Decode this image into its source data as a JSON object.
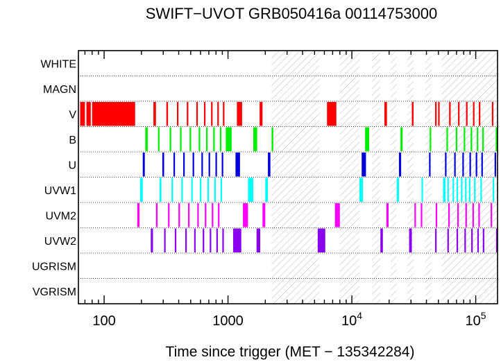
{
  "chart_data": {
    "type": "timeline",
    "title": "SWIFT−UVOT GRB050416a 00114753000",
    "xlabel": "Time since trigger (MET − 135342284)",
    "ylabel": "",
    "xscale": "log",
    "xlim": [
      62,
      150000
    ],
    "x_ticks": [
      {
        "value": 100,
        "label": "100"
      },
      {
        "value": 1000,
        "label": "1000"
      },
      {
        "value": 10000,
        "label": "10",
        "exp": "4"
      },
      {
        "value": 100000,
        "label": "10",
        "exp": "5"
      }
    ],
    "rows": [
      "WHITE",
      "MAGN",
      "V",
      "B",
      "U",
      "UVW1",
      "UVM2",
      "UVW2",
      "UGRISM",
      "VGRISM"
    ],
    "colors": {
      "V": "#ff0000",
      "B": "#00ee00",
      "U": "#0000dd",
      "UVW1": "#00ffff",
      "UVM2": "#ff00ff",
      "UVW2": "#8800ee",
      "gap_hatch": "#bbbbbb",
      "row_divider": "#000000"
    },
    "grid": "dotted row dividers",
    "hatched_gaps": [
      [
        2250,
        5500
      ],
      [
        8000,
        11500
      ],
      [
        14500,
        17000
      ],
      [
        20500,
        23000
      ],
      [
        28000,
        31500
      ],
      [
        39000,
        44000
      ],
      [
        53000,
        150000
      ]
    ],
    "exposures": {
      "V": [
        [
          64,
          70
        ],
        [
          72,
          78
        ],
        [
          80,
          178
        ],
        [
          250,
          262
        ],
        [
          318,
          328
        ],
        [
          387,
          397
        ],
        [
          465,
          475
        ],
        [
          555,
          565
        ],
        [
          640,
          650
        ],
        [
          730,
          738
        ],
        [
          820,
          828
        ],
        [
          910,
          918
        ],
        [
          1180,
          1300
        ],
        [
          1800,
          1900
        ],
        [
          6300,
          7500
        ],
        [
          18300,
          19200
        ],
        [
          30500,
          31500
        ],
        [
          47000,
          47800
        ],
        [
          49700,
          50300
        ],
        [
          61000,
          61800
        ],
        [
          72000,
          72800
        ],
        [
          83500,
          84300
        ],
        [
          95000,
          95800
        ],
        [
          106000,
          106800
        ],
        [
          135000,
          136000
        ]
      ],
      "B": [
        [
          215,
          225
        ],
        [
          272,
          280
        ],
        [
          338,
          348
        ],
        [
          410,
          418
        ],
        [
          490,
          498
        ],
        [
          580,
          590
        ],
        [
          665,
          675
        ],
        [
          760,
          770
        ],
        [
          860,
          870
        ],
        [
          960,
          1070
        ],
        [
          1600,
          1720
        ],
        [
          2250,
          2320
        ],
        [
          12800,
          13800
        ],
        [
          24700,
          25700
        ],
        [
          42500,
          43300
        ],
        [
          58000,
          58800
        ],
        [
          69000,
          69800
        ],
        [
          80000,
          80800
        ],
        [
          91000,
          91800
        ],
        [
          102000,
          102800
        ],
        [
          113000,
          113800
        ],
        [
          145000,
          148000
        ]
      ],
      "U": [
        [
          205,
          213
        ],
        [
          295,
          305
        ],
        [
          363,
          373
        ],
        [
          435,
          445
        ],
        [
          518,
          526
        ],
        [
          610,
          618
        ],
        [
          697,
          705
        ],
        [
          792,
          800
        ],
        [
          890,
          898
        ],
        [
          1150,
          1250
        ],
        [
          2100,
          2200
        ],
        [
          12000,
          13000
        ],
        [
          24000,
          25000
        ],
        [
          42000,
          42800
        ],
        [
          56500,
          57300
        ],
        [
          67000,
          67800
        ],
        [
          78000,
          78800
        ],
        [
          89000,
          89800
        ],
        [
          100000,
          100800
        ],
        [
          111000,
          111800
        ],
        [
          142000,
          143000
        ]
      ],
      "UVW1": [
        [
          195,
          205
        ],
        [
          280,
          290
        ],
        [
          350,
          358
        ],
        [
          420,
          430
        ],
        [
          505,
          515
        ],
        [
          593,
          603
        ],
        [
          682,
          690
        ],
        [
          775,
          783
        ],
        [
          870,
          878
        ],
        [
          1450,
          1600
        ],
        [
          2000,
          2100
        ],
        [
          11500,
          12300
        ],
        [
          23000,
          24000
        ],
        [
          36500,
          37300
        ],
        [
          54500,
          57000
        ],
        [
          59000,
          59800
        ],
        [
          65000,
          65800
        ],
        [
          70000,
          70800
        ],
        [
          76000,
          76800
        ],
        [
          82000,
          82800
        ],
        [
          88000,
          88800
        ],
        [
          97000,
          97800
        ],
        [
          109000,
          109800
        ],
        [
          137000,
          139500
        ]
      ],
      "UVM2": [
        [
          185,
          193
        ],
        [
          262,
          270
        ],
        [
          328,
          336
        ],
        [
          398,
          406
        ],
        [
          476,
          484
        ],
        [
          565,
          575
        ],
        [
          650,
          658
        ],
        [
          740,
          748
        ],
        [
          830,
          838
        ],
        [
          1320,
          1450
        ],
        [
          1900,
          2000
        ],
        [
          7300,
          8000
        ],
        [
          19000,
          19800
        ],
        [
          32000,
          32800
        ],
        [
          36000,
          36800
        ],
        [
          47500,
          48300
        ],
        [
          60000,
          60800
        ],
        [
          71000,
          71800
        ],
        [
          82500,
          83300
        ],
        [
          94000,
          94800
        ],
        [
          105000,
          105800
        ],
        [
          132000,
          133000
        ]
      ],
      "UVW2": [
        [
          238,
          248
        ],
        [
          305,
          313
        ],
        [
          372,
          382
        ],
        [
          452,
          460
        ],
        [
          533,
          541
        ],
        [
          625,
          633
        ],
        [
          712,
          720
        ],
        [
          805,
          813
        ],
        [
          900,
          908
        ],
        [
          1100,
          1280
        ],
        [
          1700,
          1820
        ],
        [
          5300,
          6100
        ],
        [
          17000,
          17800
        ],
        [
          29000,
          30500
        ],
        [
          47000,
          47800
        ],
        [
          59000,
          59800
        ],
        [
          70000,
          70800
        ],
        [
          81000,
          81800
        ],
        [
          92000,
          92800
        ],
        [
          103000,
          103800
        ],
        [
          114000,
          114800
        ],
        [
          146000,
          148000
        ]
      ]
    }
  }
}
